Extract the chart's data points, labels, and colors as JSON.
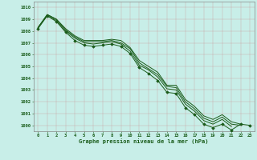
{
  "x": [
    0,
    1,
    2,
    3,
    4,
    5,
    6,
    7,
    8,
    9,
    10,
    11,
    12,
    13,
    14,
    15,
    16,
    17,
    18,
    19,
    20,
    21,
    22,
    23
  ],
  "line_top": [
    1008.3,
    1009.4,
    1009.0,
    1008.2,
    1007.6,
    1007.2,
    1007.2,
    1007.2,
    1007.3,
    1007.2,
    1006.6,
    1005.5,
    1005.0,
    1004.5,
    1003.4,
    1003.4,
    1002.2,
    1001.6,
    1000.8,
    1000.5,
    1000.9,
    1000.3,
    1000.1,
    null
  ],
  "line_mid1": [
    1008.3,
    1009.4,
    1009.0,
    1008.1,
    1007.5,
    1007.1,
    1007.1,
    1007.1,
    1007.2,
    1007.0,
    1006.5,
    1005.3,
    1004.8,
    1004.3,
    1003.3,
    1003.2,
    1002.0,
    1001.4,
    1000.6,
    1000.3,
    1000.7,
    1000.1,
    1000.0,
    null
  ],
  "line_mid2": [
    1008.3,
    1009.3,
    1008.9,
    1008.0,
    1007.4,
    1007.0,
    1006.9,
    1007.0,
    1007.1,
    1006.9,
    1006.3,
    1005.1,
    1004.7,
    1004.1,
    1003.1,
    1003.0,
    1001.8,
    1001.2,
    1000.4,
    1000.1,
    1000.5,
    999.9,
    null,
    null
  ],
  "line_marked": [
    1008.2,
    1009.3,
    1008.8,
    1007.9,
    1007.2,
    1006.8,
    1006.7,
    1006.8,
    1006.9,
    1006.7,
    1006.1,
    1004.9,
    1004.4,
    1003.8,
    1002.8,
    1002.7,
    1001.5,
    1000.9,
    1000.1,
    999.8,
    1000.1,
    999.6,
    1000.1,
    1000.0
  ],
  "line_color": "#1a5c1a",
  "bg_color": "#c8eee8",
  "grid_major_color": "#c0b8b8",
  "grid_minor_color": "#ddd8d8",
  "xlabel": "Graphe pression niveau de la mer (hPa)",
  "ylim": [
    999.5,
    1010.5
  ],
  "xlim": [
    -0.5,
    23.5
  ],
  "yticks": [
    1000,
    1001,
    1002,
    1003,
    1004,
    1005,
    1006,
    1007,
    1008,
    1009,
    1010
  ],
  "xticks": [
    0,
    1,
    2,
    3,
    4,
    5,
    6,
    7,
    8,
    9,
    10,
    11,
    12,
    13,
    14,
    15,
    16,
    17,
    18,
    19,
    20,
    21,
    22,
    23
  ],
  "figsize": [
    3.2,
    2.0
  ],
  "dpi": 100
}
